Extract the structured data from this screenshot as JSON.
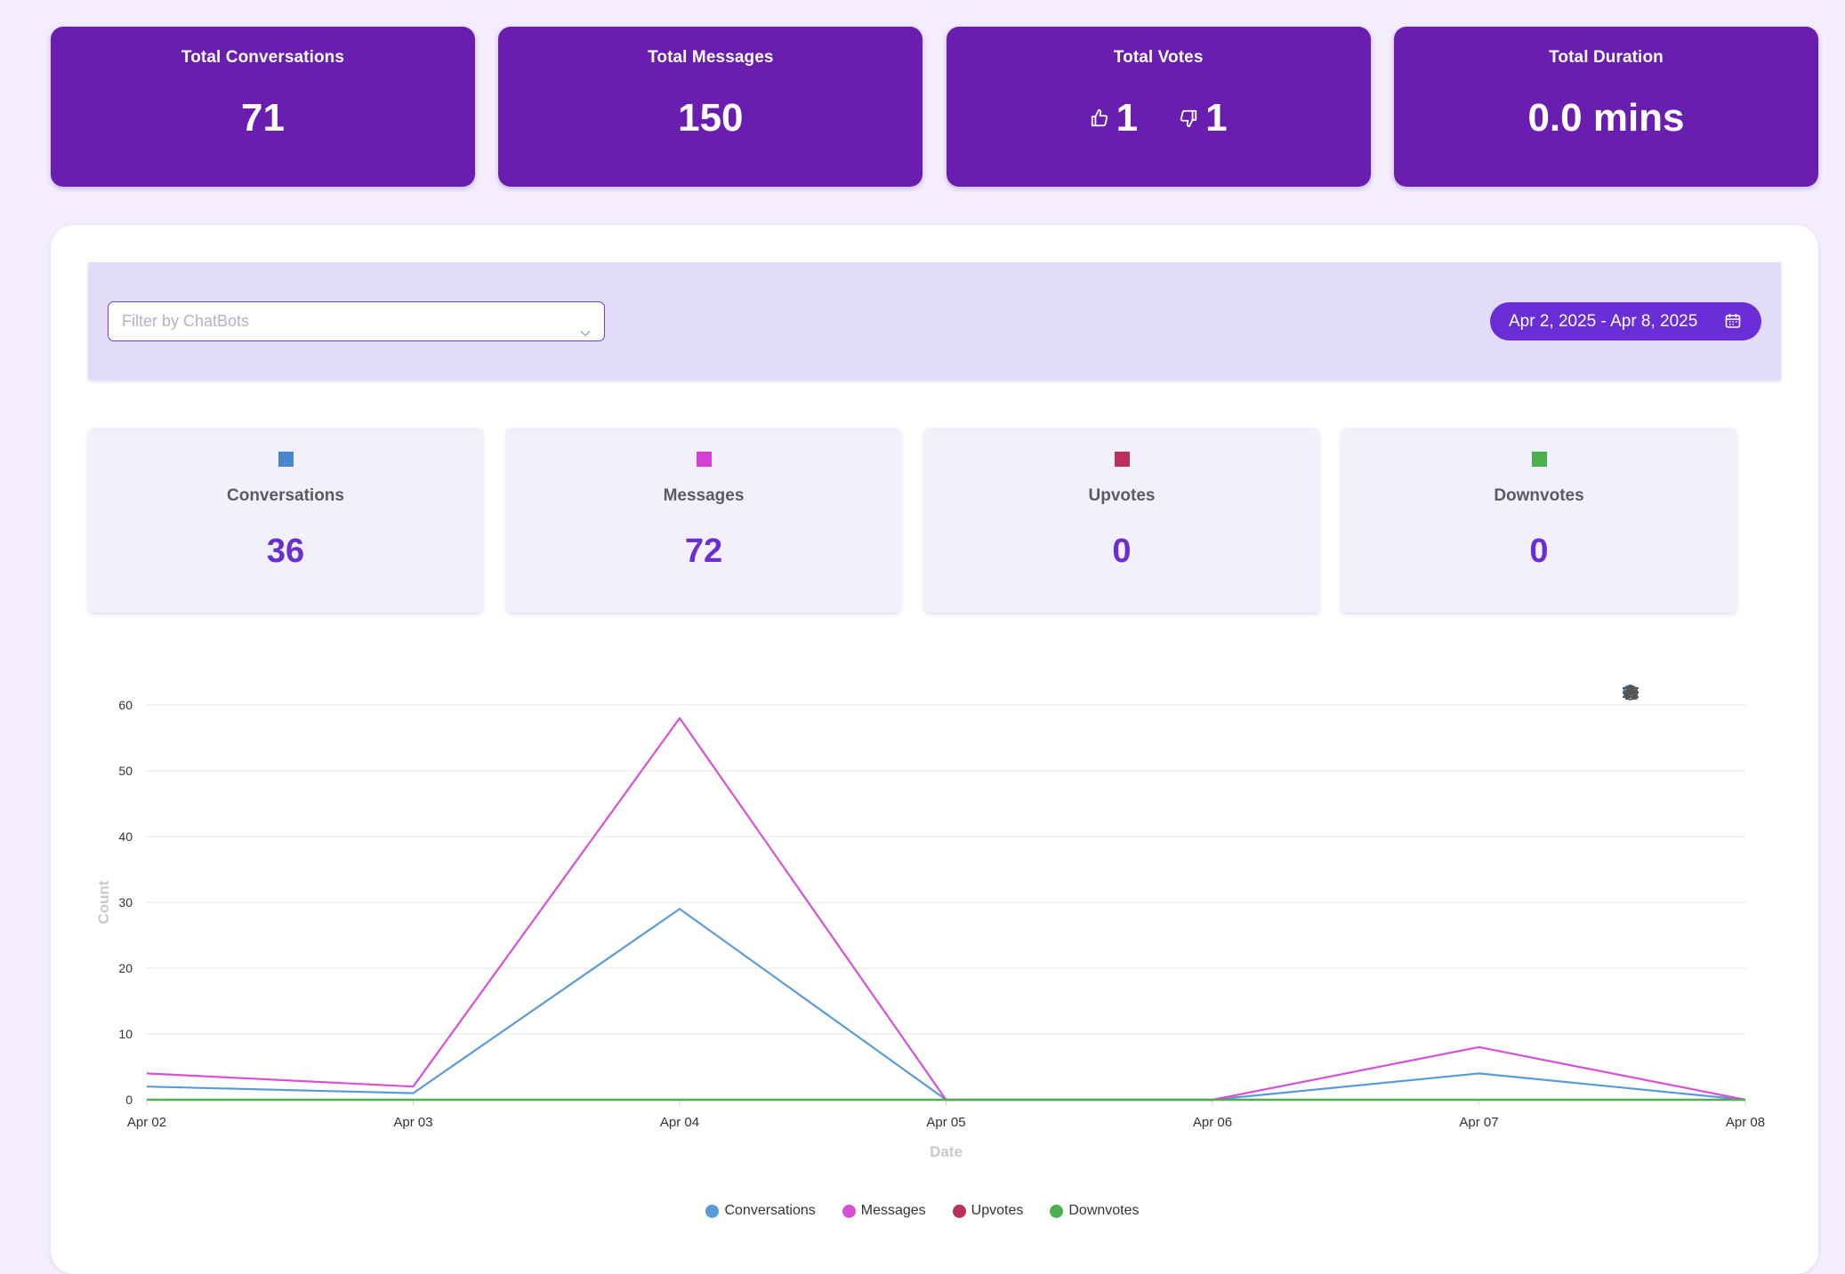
{
  "top_cards": [
    {
      "title": "Total Conversations",
      "value": "71"
    },
    {
      "title": "Total Messages",
      "value": "150"
    },
    {
      "title": "Total Votes",
      "up": "1",
      "down": "1",
      "up_icon": "thumbs-up-icon",
      "down_icon": "thumbs-down-icon"
    },
    {
      "title": "Total Duration",
      "value": "0.0 mins"
    }
  ],
  "filter": {
    "placeholder": "Filter by ChatBots",
    "date_range": "Apr 2, 2025 - Apr 8, 2025"
  },
  "stats": [
    {
      "label": "Conversations",
      "value": "36",
      "color": "#4a86d0"
    },
    {
      "label": "Messages",
      "value": "72",
      "color": "#d63fd6"
    },
    {
      "label": "Upvotes",
      "value": "0",
      "color": "#b8325a"
    },
    {
      "label": "Downvotes",
      "value": "0",
      "color": "#4caf50"
    }
  ],
  "colors": {
    "card_purple": "#6a1eb0",
    "accent": "#6b2ed6",
    "page_bg": "#f3edfd"
  },
  "chart_data": {
    "type": "line",
    "categories": [
      "Apr 02",
      "Apr 03",
      "Apr 04",
      "Apr 05",
      "Apr 06",
      "Apr 07",
      "Apr 08"
    ],
    "series": [
      {
        "name": "Conversations",
        "color": "#5b9bd5",
        "values": [
          2,
          1,
          29,
          0,
          0,
          4,
          0
        ]
      },
      {
        "name": "Messages",
        "color": "#d94fd6",
        "values": [
          4,
          2,
          58,
          0,
          0,
          8,
          0
        ]
      },
      {
        "name": "Upvotes",
        "color": "#b8325a",
        "values": [
          0,
          0,
          0,
          0,
          0,
          0,
          0
        ]
      },
      {
        "name": "Downvotes",
        "color": "#4caf50",
        "values": [
          0,
          0,
          0,
          0,
          0,
          0,
          0
        ]
      }
    ],
    "xlabel": "Date",
    "ylabel": "Count",
    "ylim": [
      0,
      60
    ],
    "yticks": [
      0,
      10,
      20,
      30,
      40,
      50,
      60
    ],
    "grid": true,
    "legend": "bottom-center",
    "toolbar_icons": [
      "zoom-in-icon",
      "zoom-out-icon",
      "zoom-select-icon",
      "pan-hand-icon",
      "home-reset-icon",
      "menu-icon"
    ]
  }
}
